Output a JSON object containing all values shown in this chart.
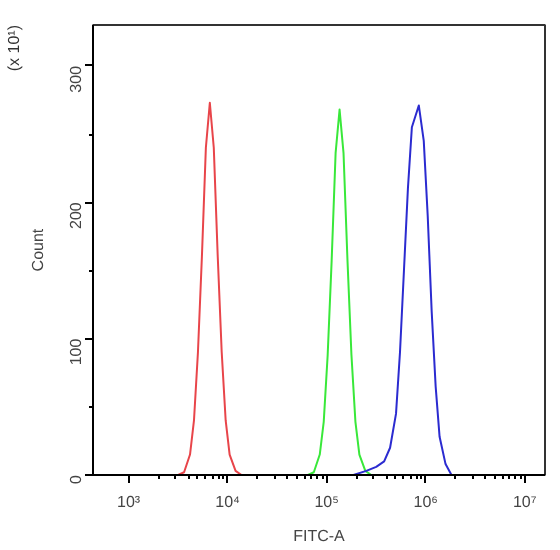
{
  "chart_data": {
    "type": "line",
    "xlabel": "FITC-A",
    "ylabel": "Count",
    "annotations": [
      "(x 10¹)"
    ],
    "log": "x",
    "xlim": [
      437,
      16000000
    ],
    "ylim": [
      0,
      330
    ],
    "xticks": [
      {
        "value": 1000,
        "label": "10³"
      },
      {
        "value": 10000,
        "label": "10⁴"
      },
      {
        "value": 100000,
        "label": "10⁵"
      },
      {
        "value": 1000000,
        "label": "10⁶"
      },
      {
        "value": 10000000,
        "label": "10⁷"
      }
    ],
    "yticks": [
      0,
      100,
      200,
      300
    ],
    "grid": false,
    "marker": "none",
    "line_style": "solid",
    "series": [
      {
        "color": "#e8454a",
        "x": [
          3162,
          3631,
          4169,
          4571,
          5012,
          5495,
          6026,
          6607,
          7244,
          7943,
          8710,
          9550,
          10470,
          12020,
          13800
        ],
        "values": [
          0,
          2,
          15,
          40,
          90,
          160,
          240,
          273,
          240,
          160,
          90,
          40,
          15,
          3,
          0
        ]
      },
      {
        "color": "#39e83a",
        "x": [
          64570,
          74130,
          85110,
          93330,
          102300,
          112200,
          123000,
          134900,
          147900,
          162200,
          177800,
          195000,
          213800,
          245500,
          281800
        ],
        "values": [
          0,
          2,
          15,
          39,
          88,
          157,
          236,
          268,
          236,
          157,
          88,
          39,
          15,
          3,
          0
        ]
      },
      {
        "color": "#2b2bd0",
        "x": [
          186200,
          251200,
          316200,
          380200,
          436500,
          501200,
          549500,
          602600,
          660700,
          724400,
          851100,
          955000,
          1047000,
          1148000,
          1259000,
          1380000,
          1585000,
          1820000
        ],
        "values": [
          0,
          3,
          6,
          10,
          20,
          45,
          90,
          150,
          210,
          255,
          271,
          245,
          190,
          120,
          65,
          28,
          8,
          0
        ]
      }
    ]
  }
}
